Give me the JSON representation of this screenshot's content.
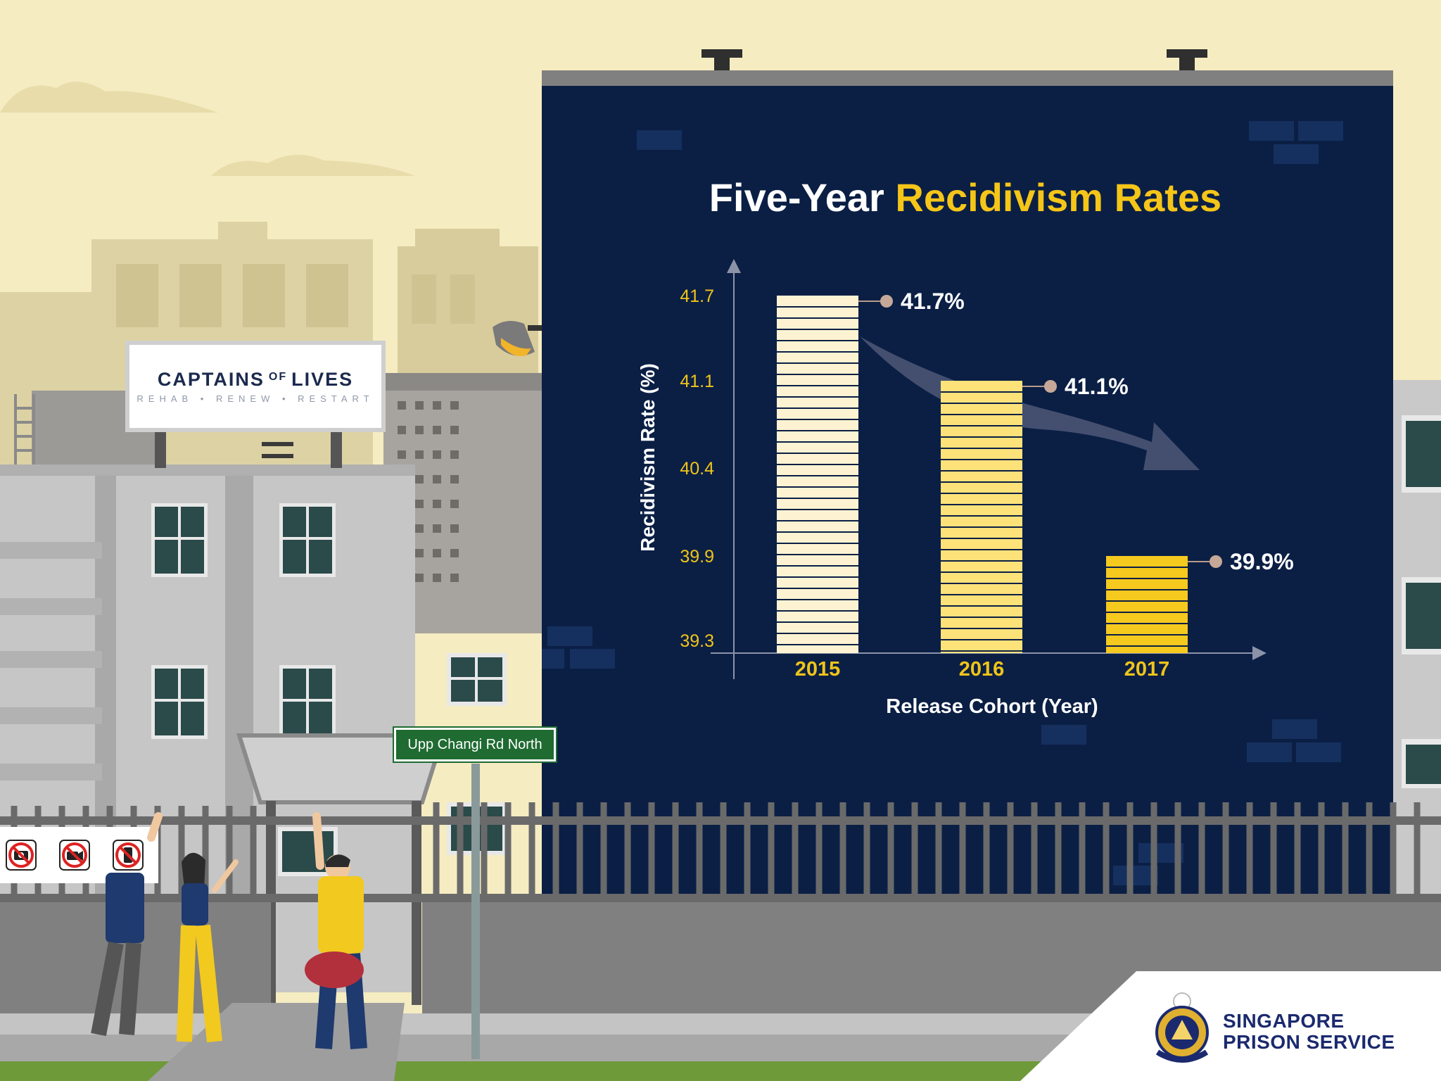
{
  "chart_data": {
    "type": "bar",
    "title_part1": "Five-Year ",
    "title_part2": "Recidivism Rates",
    "xlabel": "Release Cohort (Year)",
    "ylabel": "Recidivism Rate (%)",
    "categories": [
      "2015",
      "2016",
      "2017"
    ],
    "values": [
      41.7,
      41.1,
      39.9
    ],
    "data_labels": [
      "41.7%",
      "41.1%",
      "39.9%"
    ],
    "yticks": [
      "41.7",
      "41.1",
      "40.4",
      "39.9",
      "39.3"
    ],
    "ylim": [
      39.3,
      41.7
    ],
    "trend": "downward arrow",
    "colors": {
      "bar_fills": [
        "#fdf3d2",
        "#fde27a",
        "#f6c91f"
      ],
      "title_accent": "#f5c518",
      "tick_color": "#f0c419",
      "board": "#0b1f45"
    }
  },
  "scene": {
    "sign_captains": "CAPTAINS",
    "sign_of": "OF",
    "sign_lives": "LIVES",
    "sign_tagline": "REHAB • RENEW • RESTART",
    "street_sign": "Upp Changi Rd North",
    "prohibition_icons": [
      "no-camera-icon",
      "no-video-icon",
      "no-phone-icon"
    ]
  },
  "logo": {
    "line1": "SINGAPORE",
    "line2": "PRISON SERVICE",
    "icon": "prison-crest-icon"
  }
}
